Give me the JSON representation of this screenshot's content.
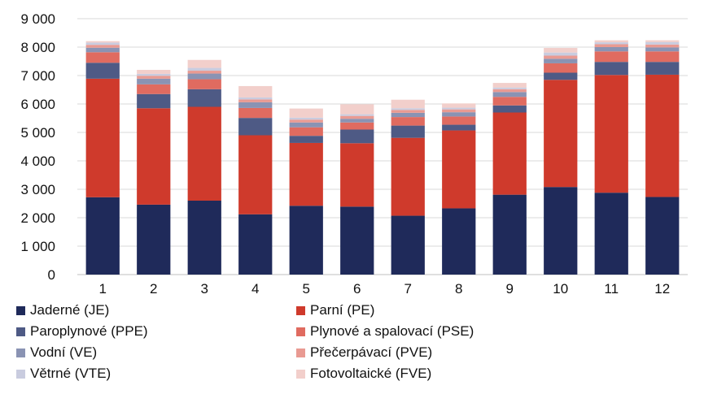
{
  "chart_data": {
    "type": "bar",
    "stacked": true,
    "categories": [
      "1",
      "2",
      "3",
      "4",
      "5",
      "6",
      "7",
      "8",
      "9",
      "10",
      "11",
      "12"
    ],
    "ylim": [
      0,
      9000
    ],
    "yticks": [
      0,
      1000,
      2000,
      3000,
      4000,
      5000,
      6000,
      7000,
      8000,
      9000
    ],
    "ytick_labels": [
      "0",
      "1 000",
      "2 000",
      "3 000",
      "4 000",
      "5 000",
      "6 000",
      "7 000",
      "8 000",
      "9 000"
    ],
    "grid": true,
    "legend_position": "bottom",
    "series": [
      {
        "name": "Jaderné (JE)",
        "color": "#1f2a5a",
        "values": [
          2720,
          2460,
          2600,
          2120,
          2420,
          2390,
          2070,
          2330,
          2810,
          3080,
          2880,
          2730
        ]
      },
      {
        "name": "Parní (PE)",
        "color": "#cf3a2c",
        "values": [
          4170,
          3390,
          3300,
          2780,
          2210,
          2230,
          2740,
          2740,
          2890,
          3770,
          4140,
          4300
        ]
      },
      {
        "name": "Paroplynové (PPE)",
        "color": "#4e5a85",
        "values": [
          560,
          500,
          620,
          610,
          250,
          480,
          430,
          200,
          250,
          250,
          460,
          450
        ]
      },
      {
        "name": "Plynové a spalovací (PSE)",
        "color": "#e06b60",
        "values": [
          370,
          340,
          350,
          350,
          300,
          250,
          300,
          290,
          300,
          330,
          370,
          370
        ]
      },
      {
        "name": "Vodní (VE)",
        "color": "#8a93b3",
        "values": [
          160,
          200,
          200,
          200,
          170,
          130,
          150,
          150,
          170,
          160,
          150,
          140
        ]
      },
      {
        "name": "Přečerpávací (PVE)",
        "color": "#e99a92",
        "values": [
          100,
          100,
          100,
          100,
          100,
          100,
          100,
          100,
          100,
          110,
          100,
          100
        ]
      },
      {
        "name": "Větrné (VTE)",
        "color": "#c9ccdf",
        "values": [
          80,
          70,
          100,
          70,
          70,
          60,
          60,
          60,
          60,
          110,
          70,
          90
        ]
      },
      {
        "name": "Fotovoltaické (FVE)",
        "color": "#f2cfcb",
        "values": [
          50,
          140,
          280,
          400,
          320,
          350,
          300,
          150,
          160,
          160,
          70,
          60
        ]
      }
    ]
  }
}
